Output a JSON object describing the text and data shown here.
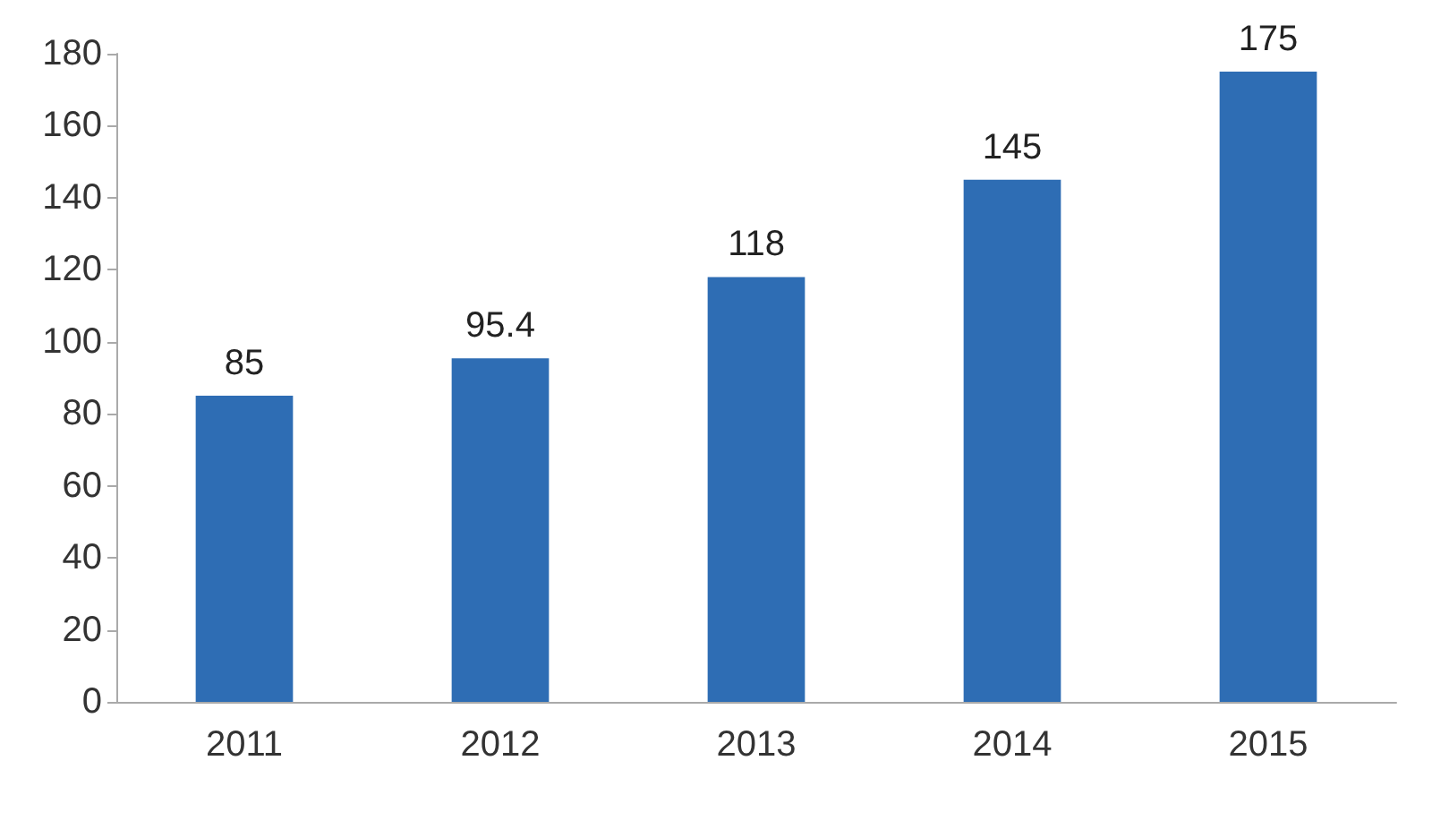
{
  "chart_data": {
    "type": "bar",
    "categories": [
      "2011",
      "2012",
      "2013",
      "2014",
      "2015"
    ],
    "values": [
      85,
      95.4,
      118,
      145,
      175
    ],
    "color": "#2e6db4",
    "ylim": [
      0,
      180
    ],
    "yticks": [
      0,
      20,
      40,
      60,
      80,
      100,
      120,
      140,
      160,
      180
    ],
    "grid": false,
    "data_labels": true
  }
}
